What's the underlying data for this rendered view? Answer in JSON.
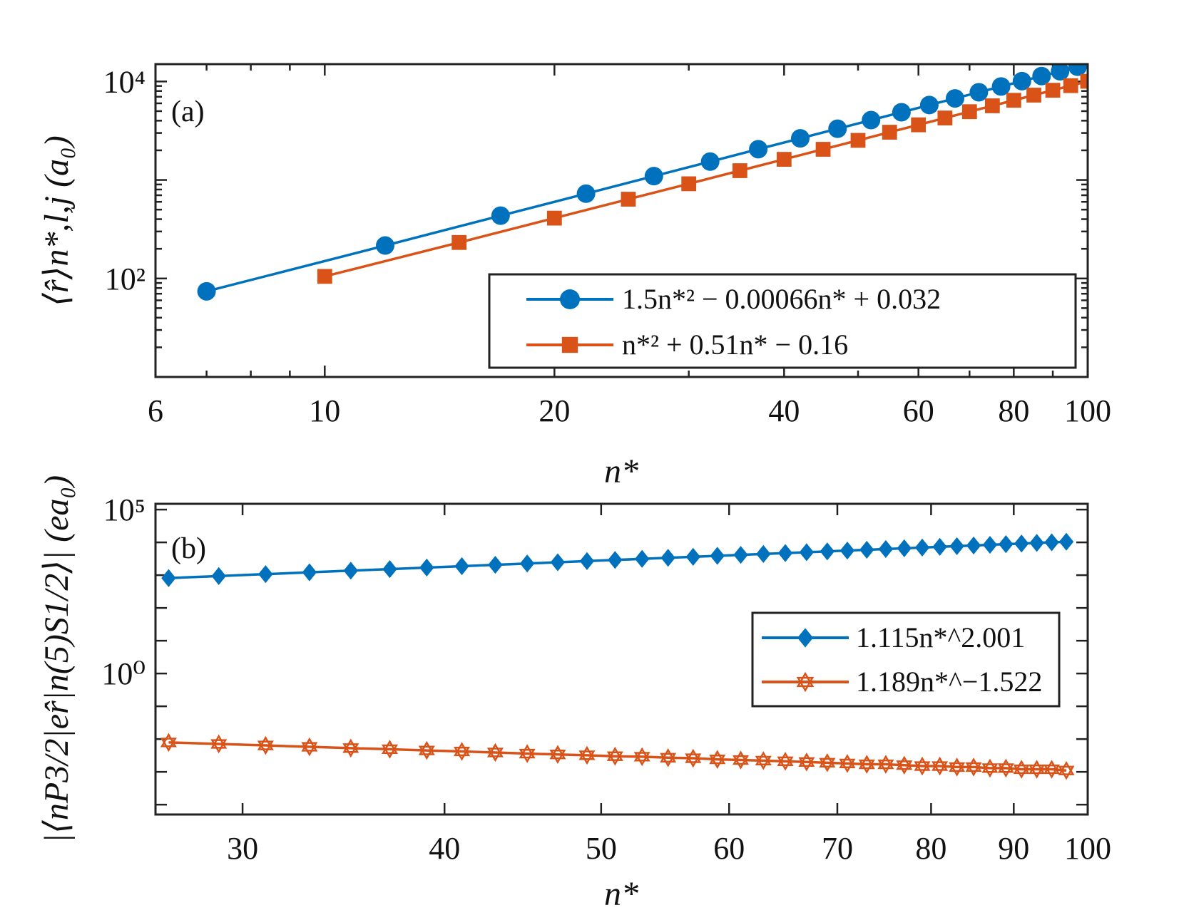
{
  "chart_data": [
    {
      "id": "a",
      "type": "line",
      "panel_label": "(a)",
      "xscale": "log",
      "yscale": "log",
      "xlim": [
        6,
        100
      ],
      "ylim": [
        10,
        15000
      ],
      "xticks": [
        6,
        10,
        20,
        40,
        60,
        80,
        100
      ],
      "xtick_labels": [
        "6",
        "10",
        "20",
        "40",
        "60",
        "80",
        "100"
      ],
      "yticks": [
        100,
        10000
      ],
      "ytick_labels": [
        "10²",
        "10⁴"
      ],
      "xlabel": "n*",
      "ylabel": "⟨r̂⟩n*,l,j (a₀)",
      "legend_position": "lower-right",
      "series": [
        {
          "name": "1.5n*² − 0.00066n* + 0.032",
          "color": "#0072BD",
          "marker": "circle",
          "x": [
            7,
            12,
            17,
            22,
            27,
            32,
            37,
            42,
            47,
            52,
            57,
            62,
            67,
            72,
            77,
            82,
            87,
            92,
            97
          ],
          "y": [
            74,
            216,
            434,
            726,
            1094,
            1536,
            2054,
            2646,
            3314,
            4056,
            4874,
            5766,
            6734,
            7776,
            8894,
            10086,
            11354,
            12696,
            14114
          ]
        },
        {
          "name": "n*² + 0.51n* − 0.16",
          "color": "#D95319",
          "marker": "square",
          "x": [
            10,
            15,
            20,
            25,
            30,
            35,
            40,
            45,
            50,
            55,
            60,
            65,
            70,
            75,
            80,
            85,
            90,
            95,
            100
          ],
          "y": [
            105,
            232,
            410,
            638,
            915,
            1243,
            1620,
            2048,
            2525,
            3053,
            3630,
            4258,
            4935,
            5663,
            6441,
            7268,
            8146,
            9073,
            10051
          ]
        }
      ]
    },
    {
      "id": "b",
      "type": "line",
      "panel_label": "(b)",
      "xscale": "log",
      "yscale": "log",
      "xlim": [
        26.5,
        100
      ],
      "ylim": [
        5e-05,
        150000
      ],
      "xticks": [
        30,
        40,
        50,
        60,
        70,
        80,
        90,
        100
      ],
      "xtick_labels": [
        "30",
        "40",
        "50",
        "60",
        "70",
        "80",
        "90",
        "100"
      ],
      "yticks": [
        1,
        100000
      ],
      "ytick_labels": [
        "10⁰",
        "10⁵"
      ],
      "xlabel": "n*",
      "ylabel": "|⟨nP3/2|er̂|n(5)S1/2⟩| (ea₀)",
      "legend_position": "right",
      "series": [
        {
          "name": "1.115n*^2.001",
          "color": "#0072BD",
          "marker": "diamond",
          "x": [
            27,
            29,
            31,
            33,
            35,
            37,
            39,
            41,
            43,
            45,
            47,
            49,
            51,
            53,
            55,
            57,
            59,
            61,
            63,
            65,
            67,
            69,
            71,
            73,
            75,
            77,
            79,
            81,
            83,
            85,
            87,
            89,
            91,
            93,
            95,
            97
          ],
          "y": [
            814,
            940,
            1075,
            1219,
            1371,
            1532,
            1702,
            1881,
            2068,
            2264,
            2469,
            2682,
            2905,
            3136,
            3376,
            3625,
            3883,
            4149,
            4425,
            4709,
            5002,
            5304,
            5614,
            5934,
            6262,
            6599,
            6945,
            7300,
            7664,
            8036,
            8418,
            8808,
            9207,
            9616,
            10033,
            10459
          ]
        },
        {
          "name": "1.189n*^−1.522",
          "color": "#D95319",
          "marker": "star",
          "x": [
            27,
            29,
            31,
            33,
            35,
            37,
            39,
            41,
            43,
            45,
            47,
            49,
            51,
            53,
            55,
            57,
            59,
            61,
            63,
            65,
            67,
            69,
            71,
            73,
            75,
            77,
            79,
            81,
            83,
            85,
            87,
            89,
            91,
            93,
            95,
            97
          ],
          "y": [
            0.0079,
            0.0071,
            0.0064,
            0.0058,
            0.0053,
            0.0049,
            0.0045,
            0.0042,
            0.0039,
            0.0036,
            0.0034,
            0.0032,
            0.003,
            0.0029,
            0.0027,
            0.0026,
            0.0024,
            0.0023,
            0.0022,
            0.0021,
            0.002,
            0.0019,
            0.0018,
            0.0017,
            0.0017,
            0.0016,
            0.0015,
            0.0015,
            0.0014,
            0.0014,
            0.0013,
            0.0013,
            0.0012,
            0.0012,
            0.0012,
            0.0011
          ]
        }
      ]
    }
  ]
}
